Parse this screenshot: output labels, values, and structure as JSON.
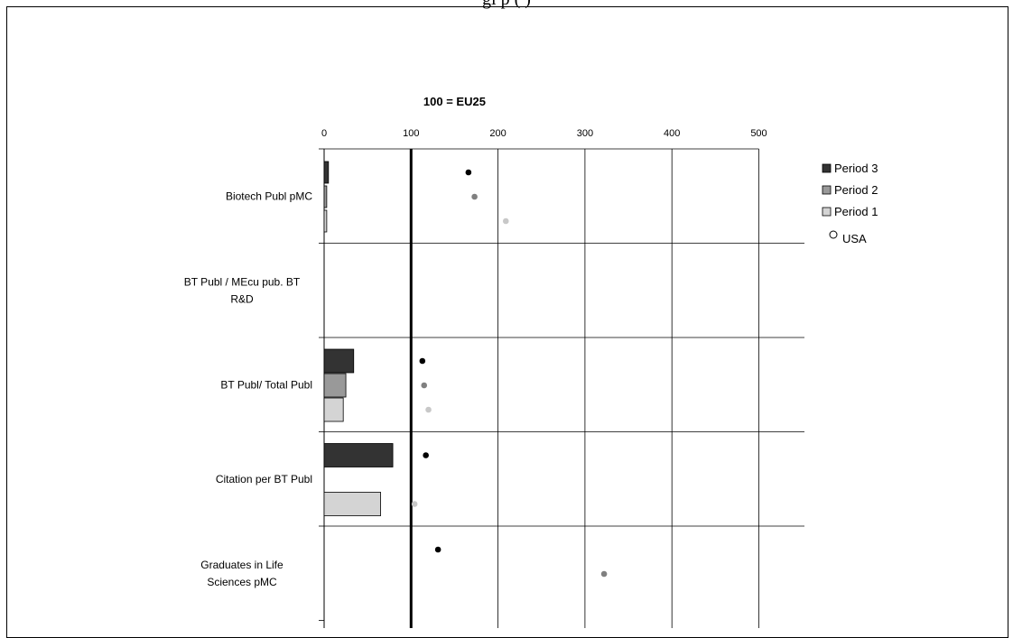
{
  "page": {
    "title_partial": "gi                            p          (                     )"
  },
  "chart_data": {
    "type": "bar",
    "orientation": "horizontal",
    "title": "100 = EU25",
    "categories": [
      "Biotech Publ pMC",
      "BT Publ / MEcu pub. BT R&D",
      "BT Publ/ Total Publ",
      "Citation per BT Publ",
      "Graduates in Life Sciences pMC"
    ],
    "category_label_lines": [
      [
        "Biotech Publ pMC"
      ],
      [
        "BT Publ / MEcu pub. BT",
        "R&D"
      ],
      [
        "BT Publ/ Total Publ"
      ],
      [
        "Citation per BT Publ"
      ],
      [
        "Graduates in Life",
        "Sciences pMC"
      ]
    ],
    "xlim": [
      0,
      550
    ],
    "xticks": [
      0,
      100,
      200,
      300,
      400,
      500
    ],
    "xtick_labels": [
      "0",
      "100",
      "200",
      "300",
      "400",
      "500"
    ],
    "reference_line": 100,
    "grid": true,
    "legend_position": "right",
    "series": [
      {
        "name": "Period 3",
        "color": "#333333",
        "values": [
          5,
          null,
          34,
          79,
          null
        ]
      },
      {
        "name": "Period 2",
        "color": "#999999",
        "values": [
          3,
          null,
          25,
          null,
          null
        ]
      },
      {
        "name": "Period 1",
        "color": "#d4d4d4",
        "values": [
          3,
          null,
          22,
          65,
          null
        ]
      }
    ],
    "usa_markers": {
      "name": "USA",
      "values": {
        "Period 3": [
          166,
          null,
          113,
          117,
          131
        ],
        "Period 2": [
          173,
          null,
          115,
          null,
          322
        ],
        "Period 1": [
          209,
          null,
          120,
          104,
          null
        ]
      },
      "colors": {
        "Period 3": "#000000",
        "Period 2": "#808080",
        "Period 1": "#c8c8c8"
      }
    }
  }
}
